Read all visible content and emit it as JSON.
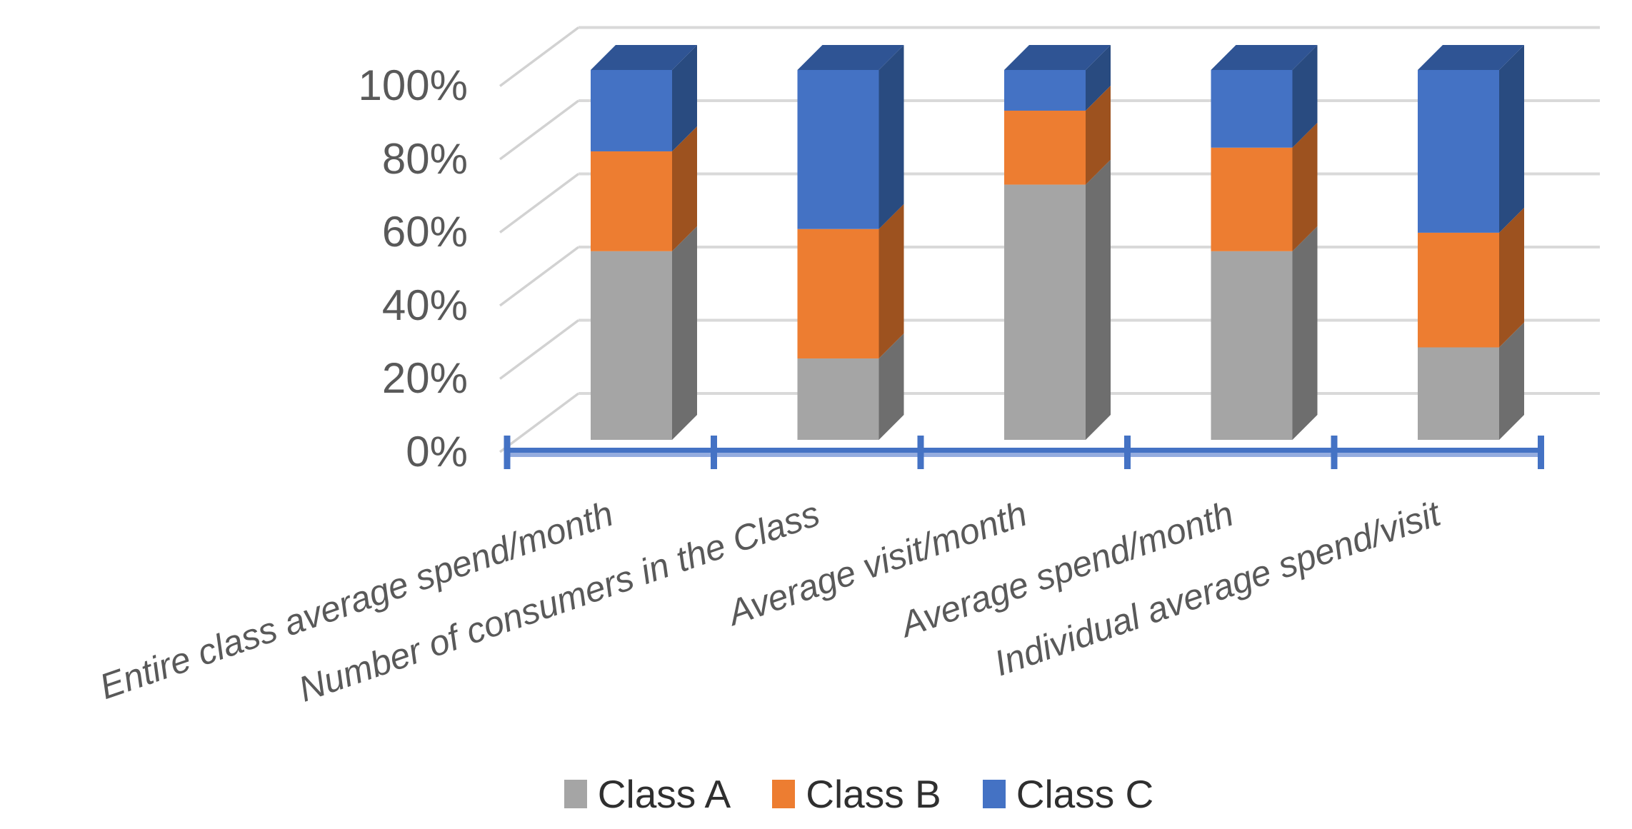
{
  "chart_data": {
    "type": "bar",
    "variant": "3d-100-percent-stacked-column",
    "title": "",
    "categories": [
      "Entire class average spend/month",
      "Number of consumers in the Class",
      "Average visit/month",
      "Average spend/month",
      "Individual average spend/visit"
    ],
    "series": [
      {
        "name": "Class A",
        "color": "#a5a5a5",
        "side_color": "#6e6e6e",
        "values": [
          51,
          22,
          69,
          51,
          25
        ]
      },
      {
        "name": "Class B",
        "color": "#ed7d31",
        "side_color": "#9d521f",
        "values": [
          27,
          35,
          20,
          28,
          31
        ]
      },
      {
        "name": "Class C",
        "color": "#4472c4",
        "side_color": "#294b80",
        "top_color": "#2f5494",
        "values": [
          22,
          43,
          11,
          21,
          44
        ]
      }
    ],
    "y_axis": {
      "tick_labels": [
        "100%",
        "80%",
        "60%",
        "40%",
        "20%",
        "0%"
      ],
      "min": 0,
      "max": 100,
      "unit": "%",
      "grid": true,
      "grid_color": "#d9d9d9",
      "label_color": "#595959"
    },
    "x_axis": {
      "line_color": "#4472c4",
      "label_color": "#595959"
    },
    "legend": {
      "position": "bottom",
      "text_color": "#2f2f2f"
    }
  }
}
